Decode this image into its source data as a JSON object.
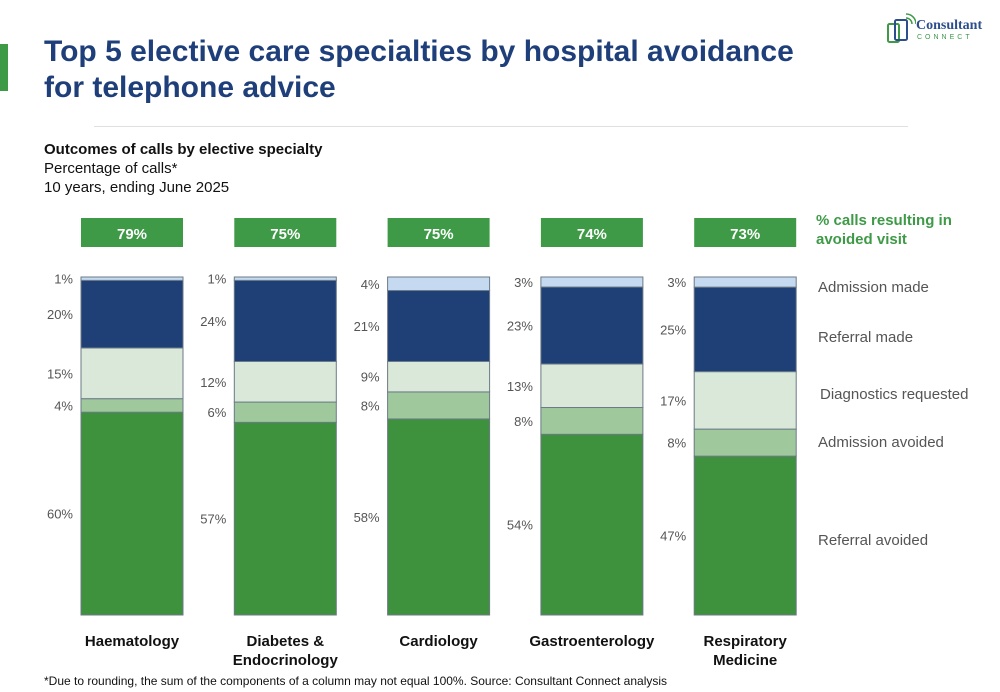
{
  "header": {
    "title_line1": "Top 5 elective care specialties by hospital avoidance",
    "title_line2": "for telephone advice",
    "logo_word": "Consultant",
    "logo_sub": "CONNECT"
  },
  "colors": {
    "title": "#1f3f7a",
    "accent_green": "#3e9a47",
    "admission_made": "#c5d9f0",
    "referral_made": "#1f3f77",
    "diagnostics_requested": "#d9e8d8",
    "admission_avoided": "#9fc99d",
    "referral_avoided": "#3e913d"
  },
  "chart_data": {
    "type": "bar",
    "stacked": true,
    "title": "Outcomes of calls by elective specialty",
    "subtitle": "Percentage of calls*",
    "period": "10 years, ending June 2025",
    "categories": [
      [
        "Haematology"
      ],
      [
        "Diabetes &",
        "Endocrinology"
      ],
      [
        "Cardiology"
      ],
      [
        "Gastroenterology"
      ],
      [
        "Respiratory",
        "Medicine"
      ]
    ],
    "series": [
      {
        "name": "Referral avoided",
        "key": "referral_avoided",
        "values": [
          60,
          57,
          58,
          54,
          47
        ]
      },
      {
        "name": "Admission avoided",
        "key": "admission_avoided",
        "values": [
          4,
          6,
          8,
          8,
          8
        ]
      },
      {
        "name": "Diagnostics requested",
        "key": "diagnostics_requested",
        "values": [
          15,
          12,
          9,
          13,
          17
        ]
      },
      {
        "name": "Referral made",
        "key": "referral_made",
        "values": [
          20,
          24,
          21,
          23,
          25
        ]
      },
      {
        "name": "Admission made",
        "key": "admission_made",
        "values": [
          1,
          1,
          4,
          3,
          3
        ]
      }
    ],
    "avoided_visit_label": [
      "% calls resulting in",
      "avoided visit"
    ],
    "avoided_visit_totals": [
      "79%",
      "75%",
      "75%",
      "74%",
      "73%"
    ],
    "ylim": [
      0,
      100
    ],
    "xlabel": "",
    "ylabel": "",
    "grid": false,
    "legend": "right"
  },
  "footnote": "*Due to rounding, the sum of the components of a column may not equal 100%.  Source: Consultant Connect analysis"
}
